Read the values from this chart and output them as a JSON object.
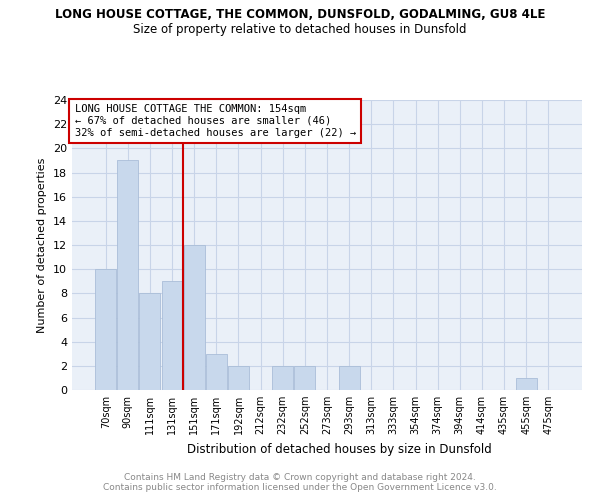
{
  "title": "LONG HOUSE COTTAGE, THE COMMON, DUNSFOLD, GODALMING, GU8 4LE",
  "subtitle": "Size of property relative to detached houses in Dunsfold",
  "xlabel": "Distribution of detached houses by size in Dunsfold",
  "ylabel": "Number of detached properties",
  "bar_color": "#c8d8ec",
  "bar_edge_color": "#aabdd8",
  "bins": [
    "70sqm",
    "90sqm",
    "111sqm",
    "131sqm",
    "151sqm",
    "171sqm",
    "192sqm",
    "212sqm",
    "232sqm",
    "252sqm",
    "273sqm",
    "293sqm",
    "313sqm",
    "333sqm",
    "354sqm",
    "374sqm",
    "394sqm",
    "414sqm",
    "435sqm",
    "455sqm",
    "475sqm"
  ],
  "values": [
    10,
    19,
    8,
    9,
    12,
    3,
    2,
    0,
    2,
    2,
    0,
    2,
    0,
    0,
    0,
    0,
    0,
    0,
    0,
    1,
    0
  ],
  "vline_x": 4,
  "vline_color": "#cc0000",
  "annotation_text": "LONG HOUSE COTTAGE THE COMMON: 154sqm\n← 67% of detached houses are smaller (46)\n32% of semi-detached houses are larger (22) →",
  "annotation_box_color": "#ffffff",
  "annotation_box_edge_color": "#cc0000",
  "ylim": [
    0,
    24
  ],
  "yticks": [
    0,
    2,
    4,
    6,
    8,
    10,
    12,
    14,
    16,
    18,
    20,
    22,
    24
  ],
  "footer": "Contains HM Land Registry data © Crown copyright and database right 2024.\nContains public sector information licensed under the Open Government Licence v3.0.",
  "grid_color": "#c8d4e8",
  "bg_color": "#eaf0f8",
  "title_fontsize": 8.5,
  "subtitle_fontsize": 8.5
}
